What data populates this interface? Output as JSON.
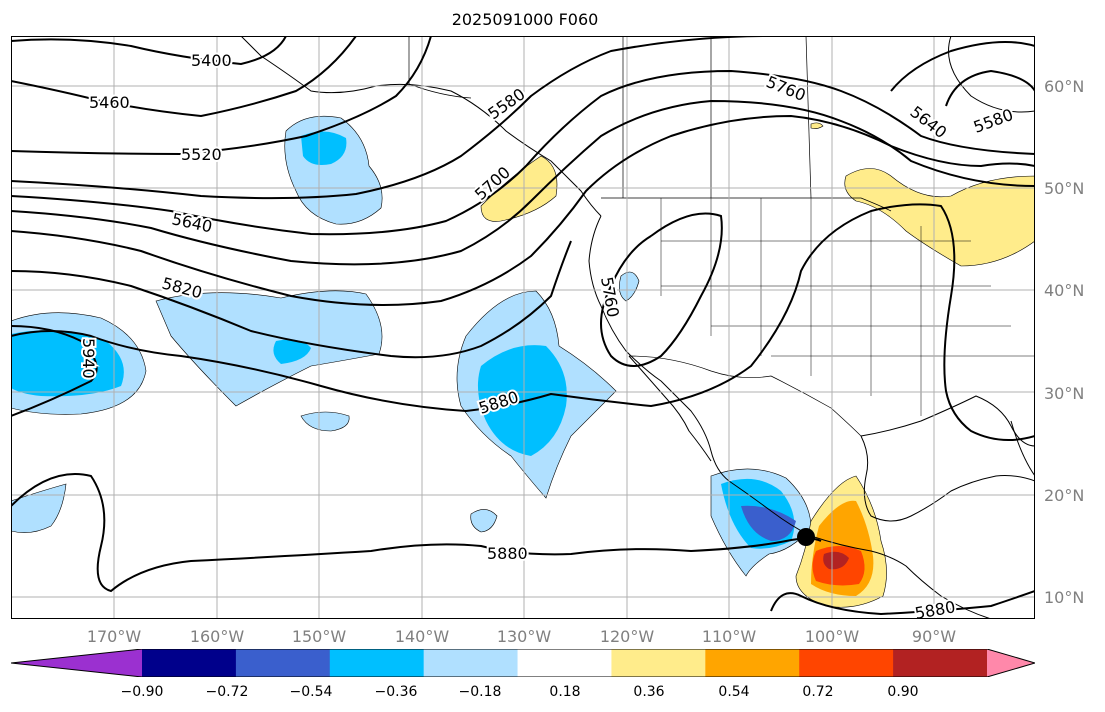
{
  "title": "2025091000 F060",
  "lat_labels": [
    "60°N",
    "50°N",
    "40°N",
    "30°N",
    "20°N",
    "10°N"
  ],
  "lon_labels": [
    "170°W",
    "160°W",
    "150°W",
    "140°W",
    "130°W",
    "120°W",
    "110°W",
    "100°W",
    "90°W"
  ],
  "contour_labels": [
    "5400",
    "5460",
    "5520",
    "5580",
    "5640",
    "5700",
    "5760",
    "5820",
    "5880",
    "5940",
    "5580",
    "5640",
    "5760",
    "5880",
    "5880"
  ],
  "colorbar": {
    "ticks": [
      "−0.90",
      "−0.72",
      "−0.54",
      "−0.36",
      "−0.18",
      "0.18",
      "0.36",
      "0.54",
      "0.72",
      "0.90"
    ],
    "colors": [
      "#9b30d0",
      "#00008b",
      "#3a5fcd",
      "#00bfff",
      "#b0e0ff",
      "#ffffff",
      "#ffec8b",
      "#ffa500",
      "#ff4500",
      "#b22222",
      "#ff88aa"
    ]
  }
}
